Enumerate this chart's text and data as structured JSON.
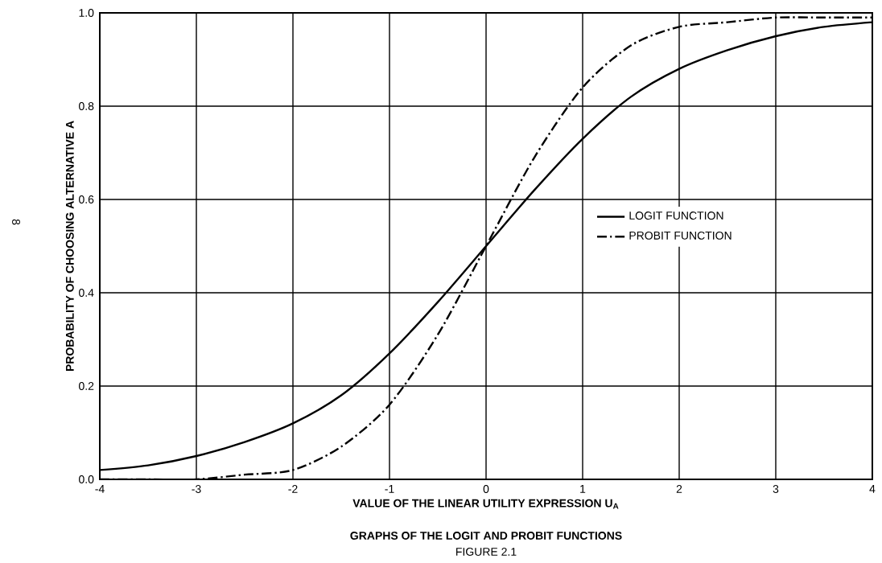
{
  "chart_data": {
    "type": "line",
    "title": "GRAPHS OF THE LOGIT AND PROBIT FUNCTIONS",
    "subtitle": "FIGURE 2.1",
    "xlabel": "VALUE OF THE LINEAR UTILITY EXPRESSION U$_{A}$",
    "ylabel": "PROBABILITY OF CHOOSING ALTERNATIVE A",
    "annotations": [
      "8"
    ],
    "x": [
      -4,
      -3.5,
      -3,
      -2.5,
      -2,
      -1.5,
      -1,
      -0.5,
      0,
      0.5,
      1,
      1.5,
      2,
      2.5,
      3,
      3.5,
      4
    ],
    "series": [
      {
        "name": "LOGIT FUNCTION",
        "color": "#000000",
        "line_style": "solid",
        "values": [
          0.02,
          0.03,
          0.05,
          0.08,
          0.12,
          0.18,
          0.27,
          0.38,
          0.5,
          0.62,
          0.73,
          0.82,
          0.88,
          0.92,
          0.95,
          0.97,
          0.98
        ]
      },
      {
        "name": "PROBIT FUNCTION",
        "color": "#000000",
        "line_style": "dashdot",
        "values": [
          0.0,
          0.0,
          0.0,
          0.01,
          0.02,
          0.07,
          0.16,
          0.31,
          0.5,
          0.69,
          0.84,
          0.93,
          0.97,
          0.98,
          0.99,
          0.99,
          0.99
        ]
      }
    ],
    "xlim": [
      -4,
      4
    ],
    "ylim": [
      0,
      1
    ],
    "xticks": [
      -4,
      -3,
      -2,
      -1,
      0,
      1,
      2,
      3,
      4
    ],
    "yticks": [
      {
        "value": 0,
        "label": "0.0"
      },
      {
        "value": 0.2,
        "label": "0.2"
      },
      {
        "value": 0.4,
        "label": "0.4"
      },
      {
        "value": 0.6,
        "label": "0.6"
      },
      {
        "value": 0.8,
        "label": "0.8"
      },
      {
        "value": 1,
        "label": "1.0"
      }
    ],
    "grid": true,
    "legend": "right",
    "marker": "none"
  }
}
